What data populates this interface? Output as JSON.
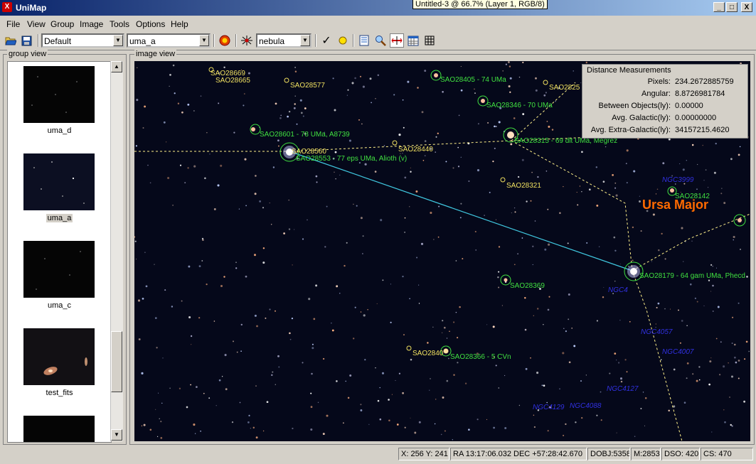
{
  "window": {
    "title": "UniMap",
    "doc_title": "Untitled-3 @ 66.7% (Layer 1, RGB/8)",
    "app_icon": "X",
    "min": "_",
    "max": "□",
    "close": "X"
  },
  "menu": [
    "File",
    "View",
    "Group",
    "Image",
    "Tools",
    "Options",
    "Help"
  ],
  "toolbar": {
    "profile": "Default",
    "image": "uma_a",
    "object_type": "nebula"
  },
  "group_view": {
    "label": "group view",
    "items": [
      {
        "name": "uma_d",
        "selected": false
      },
      {
        "name": "uma_a",
        "selected": true
      },
      {
        "name": "uma_c",
        "selected": false
      },
      {
        "name": "test_fits",
        "selected": false
      }
    ]
  },
  "image_view": {
    "label": "image view",
    "constellation": "Ursa Major",
    "labels_yellow": [
      "SAO28669",
      "SAO28665",
      "SAO28577",
      "SAO28560",
      "SAO28440",
      "SAO28321",
      "SAO2825",
      "SAO2840"
    ],
    "labels_green": [
      "SAO28405 - 74 UMa",
      "SAO28346 - 70 UMa",
      "SAO28601 - 78 UMa, A8739",
      "SAO28553 - 77 eps UMa, Alioth (v)",
      "SAO28315 - 69 dlt UMa, Megrez",
      "SAO28142",
      "SAO28179 - 64 gam UMa, Phecd",
      "SAO28369",
      "SAO28366 - 5 CVn"
    ],
    "labels_blue": [
      "NGC3999",
      "NGC4057",
      "NGC4007",
      "NGC4127",
      "NGC4129",
      "NGC4088",
      "NGC4"
    ]
  },
  "distance": {
    "title": "Distance Measurements",
    "rows": [
      {
        "k": "Pixels:",
        "v": "234.2672885759"
      },
      {
        "k": "Angular:",
        "v": "8.8726981784"
      },
      {
        "k": "Between Objects(ly):",
        "v": "0.00000"
      },
      {
        "k": "Avg. Galactic(ly):",
        "v": "0.00000000"
      },
      {
        "k": "Avg. Extra-Galactic(ly):",
        "v": "34157215.4620"
      }
    ]
  },
  "status": {
    "xy": "X: 256 Y: 241",
    "radec": "RA  13:17:06.032 DEC +57:28:42.670",
    "dobj": "DOBJ:5358",
    "m": "M:2853",
    "dso": "DSO: 420",
    "cs": "CS: 470"
  },
  "colors": {
    "label_yellow": "#f0e060",
    "label_green": "#40e040",
    "label_blue": "#3030e0",
    "constellation": "#ff6a00",
    "measure_line": "#40c8e0"
  }
}
